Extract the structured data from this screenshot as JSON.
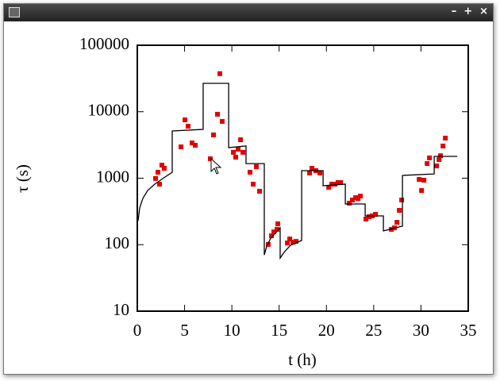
{
  "window": {
    "buttons": [
      "–",
      "+",
      "×"
    ]
  },
  "chart_data": {
    "type": "scatter",
    "xlabel": "t (h)",
    "ylabel": "τ (s)",
    "xlim": [
      0,
      35
    ],
    "xticks": [
      0,
      5,
      10,
      15,
      20,
      25,
      30,
      35
    ],
    "ylim": [
      10,
      100000
    ],
    "yticks": [
      10,
      100,
      1000,
      10000,
      100000
    ],
    "yscale": "log",
    "series": [
      {
        "type": "scatter",
        "color": "#e30000",
        "x": [
          1.93,
          2.18,
          2.35,
          2.6,
          2.85,
          4.62,
          5.04,
          5.37,
          5.79,
          6.13,
          7.72,
          8.06,
          8.48,
          8.73,
          8.98,
          10.16,
          10.41,
          10.66,
          10.92,
          11.17,
          11.92,
          12.26,
          12.59,
          12.93,
          13.85,
          14.19,
          14.44,
          14.78,
          14.86,
          15.87,
          16.12,
          16.46,
          16.79,
          18.22,
          18.47,
          18.89,
          19.31,
          20.24,
          20.57,
          20.91,
          21.24,
          21.5,
          22.42,
          22.75,
          23.09,
          23.34,
          23.59,
          24.18,
          24.52,
          24.85,
          25.19,
          26.87,
          27.2,
          27.46,
          27.71,
          27.96,
          29.81,
          30.06,
          30.31,
          30.65,
          30.9,
          31.65,
          31.91,
          32.07,
          32.33,
          32.58
        ],
        "values": [
          990,
          1230,
          813,
          1570,
          1410,
          2960,
          7540,
          6040,
          3390,
          3130,
          1960,
          4480,
          9160,
          37400,
          7150,
          2450,
          2070,
          2730,
          3790,
          2450,
          1230,
          813,
          1490,
          637,
          101,
          136,
          156,
          170,
          206,
          106,
          122,
          109,
          112,
          1200,
          1410,
          1300,
          1200,
          730,
          813,
          813,
          860,
          860,
          421,
          470,
          510,
          493,
          538,
          243,
          264,
          271,
          286,
          170,
          179,
          217,
          328,
          470,
          959,
          653,
          934,
          1660,
          2020,
          1530,
          1910,
          2180,
          3050,
          4010
        ]
      },
      {
        "type": "line",
        "color": "#000000",
        "x": [
          0.08,
          0.25,
          0.59,
          1.09,
          1.85,
          2.69,
          3.69,
          3.69,
          6.97,
          6.97,
          9.66,
          9.66,
          11.5,
          11.5,
          13.43,
          13.43,
          13.69,
          14.11,
          15.11,
          15.11,
          15.53,
          16.2,
          17.38,
          17.38,
          19.65,
          19.65,
          22.0,
          22.0,
          24.1,
          24.1,
          26.03,
          26.03,
          28.04,
          28.04,
          31.4,
          31.4,
          33.84
        ],
        "values": [
          230,
          356,
          497,
          653,
          813,
          986,
          1230,
          5140,
          5430,
          26700,
          26700,
          2880,
          3050,
          1660,
          1660,
          70,
          95,
          125,
          179,
          63,
          77,
          98,
          116,
          1300,
          1300,
          771,
          813,
          409,
          409,
          271,
          271,
          161,
          190,
          1100,
          1160,
          2130,
          2130
        ]
      }
    ]
  }
}
